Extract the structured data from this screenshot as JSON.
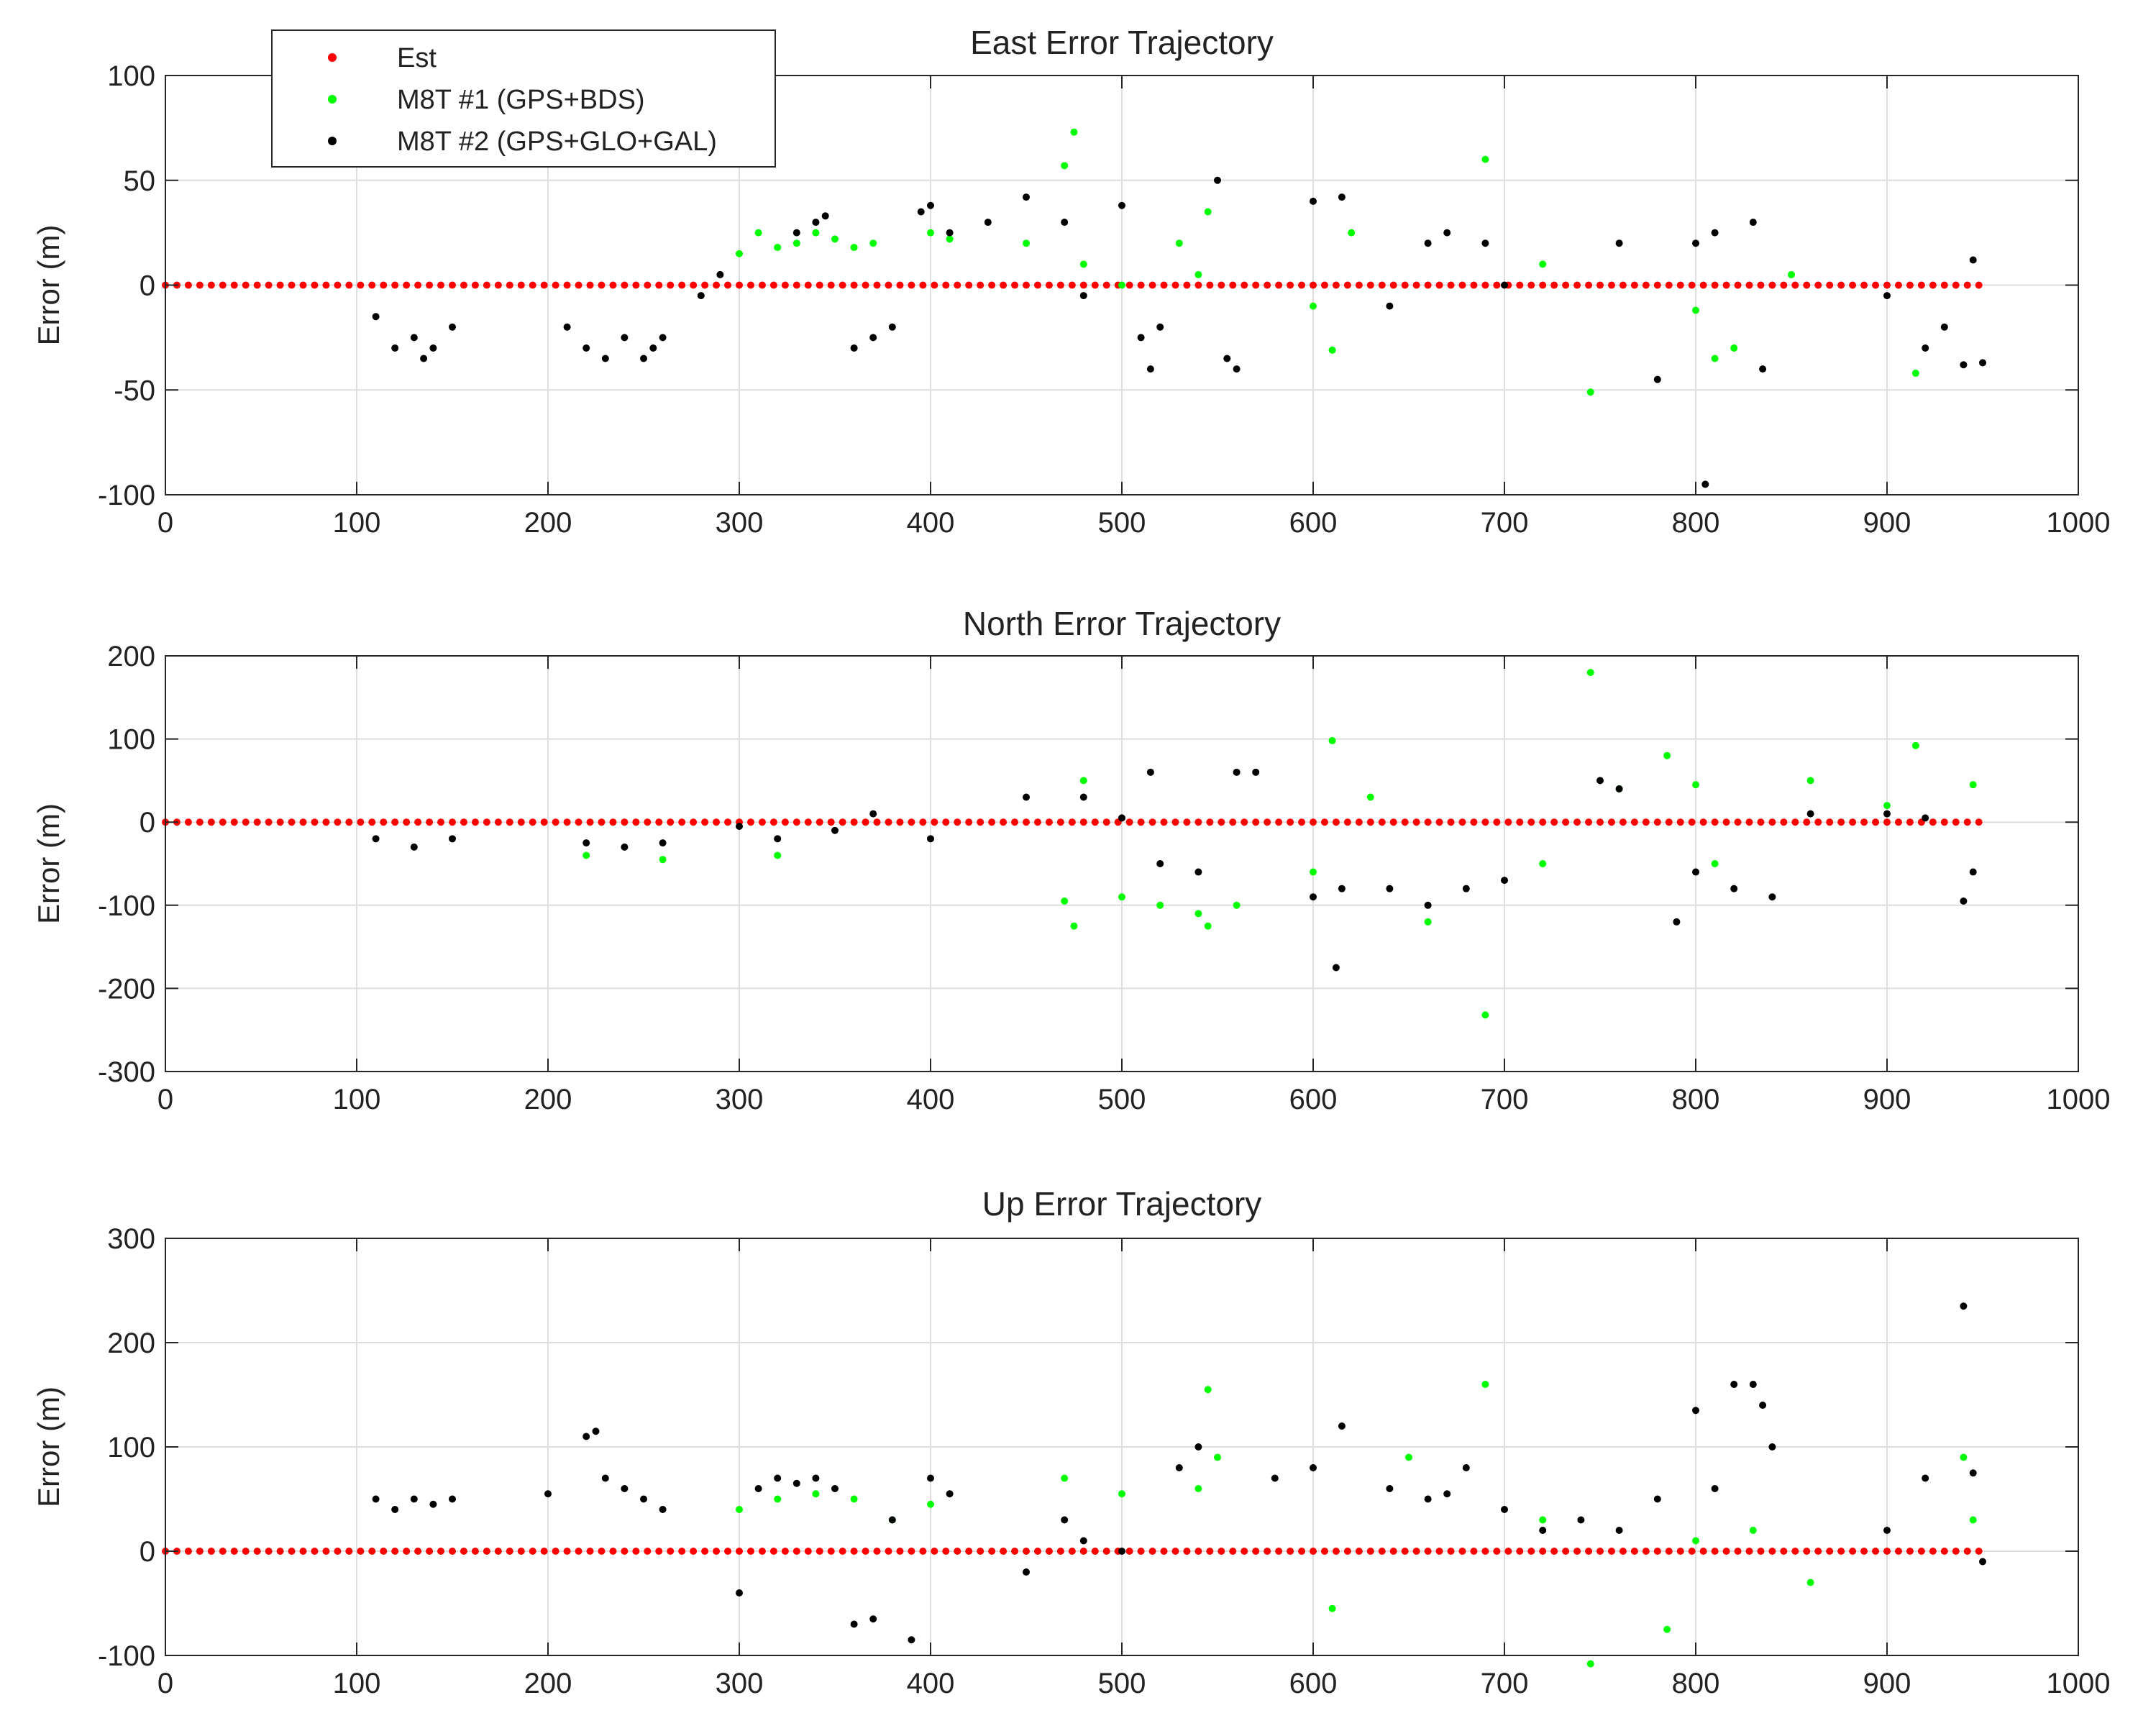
{
  "chart_data": [
    {
      "type": "scatter",
      "title": "East Error Trajectory",
      "xlabel": "",
      "ylabel": "Error (m)",
      "xlim": [
        0,
        1000
      ],
      "ylim": [
        -100,
        100
      ],
      "xticks": [
        0,
        100,
        200,
        300,
        400,
        500,
        600,
        700,
        800,
        900,
        1000
      ],
      "yticks": [
        -100,
        -50,
        0,
        50,
        100
      ],
      "grid": true,
      "legend": "top-left",
      "series": [
        {
          "name": "Est",
          "color": "#ff0000",
          "x": [
            0,
            950
          ],
          "y": [
            0,
            0
          ],
          "style": "dense-line"
        },
        {
          "name": "M8T #1 (GPS+BDS)",
          "color": "#00ff00",
          "x": [
            300,
            310,
            320,
            330,
            340,
            350,
            360,
            370,
            400,
            410,
            450,
            470,
            475,
            480,
            500,
            530,
            540,
            545,
            600,
            610,
            620,
            690,
            720,
            745,
            800,
            810,
            820,
            850,
            915
          ],
          "y": [
            15,
            25,
            18,
            20,
            25,
            22,
            18,
            20,
            25,
            22,
            20,
            57,
            73,
            10,
            0,
            20,
            5,
            35,
            -10,
            -31,
            25,
            60,
            10,
            -51,
            -12,
            -35,
            -30,
            5,
            -42
          ]
        },
        {
          "name": "M8T #2 (GPS+GLO+GAL)",
          "color": "#000000",
          "x": [
            110,
            120,
            130,
            135,
            140,
            150,
            210,
            220,
            230,
            240,
            250,
            255,
            260,
            280,
            290,
            330,
            340,
            345,
            360,
            370,
            380,
            395,
            400,
            410,
            430,
            450,
            470,
            480,
            500,
            510,
            515,
            520,
            550,
            555,
            560,
            600,
            615,
            640,
            660,
            670,
            690,
            700,
            760,
            780,
            800,
            805,
            810,
            830,
            835,
            900,
            920,
            930,
            940,
            945,
            950
          ],
          "y": [
            -15,
            -30,
            -25,
            -35,
            -30,
            -20,
            -20,
            -30,
            -35,
            -25,
            -35,
            -30,
            -25,
            -5,
            5,
            25,
            30,
            33,
            -30,
            -25,
            -20,
            35,
            38,
            25,
            30,
            42,
            30,
            -5,
            38,
            -25,
            -40,
            -20,
            50,
            -35,
            -40,
            40,
            42,
            -10,
            20,
            25,
            20,
            0,
            20,
            -45,
            20,
            -95,
            25,
            30,
            -40,
            -5,
            -30,
            -20,
            -38,
            12,
            -37
          ]
        }
      ]
    },
    {
      "type": "scatter",
      "title": "North Error Trajectory",
      "xlabel": "",
      "ylabel": "Error (m)",
      "xlim": [
        0,
        1000
      ],
      "ylim": [
        -300,
        200
      ],
      "xticks": [
        0,
        100,
        200,
        300,
        400,
        500,
        600,
        700,
        800,
        900,
        1000
      ],
      "yticks": [
        -300,
        -200,
        -100,
        0,
        100,
        200
      ],
      "grid": true,
      "series": [
        {
          "name": "Est",
          "color": "#ff0000",
          "x": [
            0,
            950
          ],
          "y": [
            0,
            0
          ],
          "style": "dense-line"
        },
        {
          "name": "M8T #1 (GPS+BDS)",
          "color": "#00ff00",
          "x": [
            220,
            260,
            320,
            470,
            475,
            480,
            500,
            520,
            540,
            545,
            560,
            600,
            610,
            630,
            660,
            690,
            720,
            745,
            760,
            785,
            800,
            810,
            860,
            900,
            915,
            945
          ],
          "y": [
            -40,
            -45,
            -40,
            -95,
            -125,
            50,
            -90,
            -100,
            -110,
            -125,
            -100,
            -60,
            98,
            30,
            -120,
            -232,
            -50,
            180,
            40,
            80,
            45,
            -50,
            50,
            20,
            92,
            45
          ]
        },
        {
          "name": "M8T #2 (GPS+GLO+GAL)",
          "color": "#000000",
          "x": [
            110,
            130,
            150,
            220,
            240,
            260,
            300,
            320,
            350,
            370,
            400,
            450,
            480,
            500,
            515,
            520,
            540,
            560,
            570,
            600,
            612,
            615,
            640,
            660,
            680,
            700,
            750,
            760,
            790,
            800,
            820,
            840,
            860,
            900,
            920,
            940,
            945
          ],
          "y": [
            -20,
            -30,
            -20,
            -25,
            -30,
            -25,
            -5,
            -20,
            -10,
            10,
            -20,
            30,
            30,
            5,
            60,
            -50,
            -60,
            60,
            60,
            -90,
            -175,
            -80,
            -80,
            -100,
            -80,
            -70,
            50,
            40,
            -120,
            -60,
            -80,
            -90,
            10,
            10,
            5,
            -95,
            -60
          ]
        }
      ]
    },
    {
      "type": "scatter",
      "title": "Up Error Trajectory",
      "xlabel": "",
      "ylabel": "Error (m)",
      "xlim": [
        0,
        1000
      ],
      "ylim": [
        -100,
        300
      ],
      "xticks": [
        0,
        100,
        200,
        300,
        400,
        500,
        600,
        700,
        800,
        900,
        1000
      ],
      "yticks": [
        -100,
        0,
        100,
        200,
        300
      ],
      "grid": true,
      "series": [
        {
          "name": "Est",
          "color": "#ff0000",
          "x": [
            0,
            950
          ],
          "y": [
            0,
            0
          ],
          "style": "dense-line"
        },
        {
          "name": "M8T #1 (GPS+BDS)",
          "color": "#00ff00",
          "x": [
            300,
            320,
            340,
            360,
            380,
            400,
            470,
            500,
            540,
            545,
            550,
            610,
            650,
            690,
            720,
            745,
            785,
            800,
            830,
            860,
            940,
            945
          ],
          "y": [
            40,
            50,
            55,
            50,
            30,
            45,
            70,
            55,
            60,
            155,
            90,
            -55,
            90,
            160,
            30,
            -108,
            -75,
            10,
            20,
            -30,
            90,
            30
          ]
        },
        {
          "name": "M8T #2 (GPS+GLO+GAL)",
          "color": "#000000",
          "x": [
            110,
            120,
            130,
            140,
            150,
            200,
            220,
            225,
            230,
            240,
            250,
            260,
            300,
            310,
            320,
            330,
            340,
            350,
            360,
            370,
            380,
            390,
            400,
            410,
            450,
            470,
            480,
            500,
            530,
            540,
            580,
            600,
            615,
            640,
            660,
            670,
            680,
            700,
            720,
            740,
            760,
            780,
            800,
            810,
            820,
            830,
            835,
            840,
            900,
            920,
            940,
            945,
            950
          ],
          "y": [
            50,
            40,
            50,
            45,
            50,
            55,
            110,
            115,
            70,
            60,
            50,
            40,
            -40,
            60,
            70,
            65,
            70,
            60,
            -70,
            -65,
            30,
            -85,
            70,
            55,
            -20,
            30,
            10,
            0,
            80,
            100,
            70,
            80,
            120,
            60,
            50,
            55,
            80,
            40,
            20,
            30,
            20,
            50,
            135,
            60,
            160,
            160,
            140,
            100,
            20,
            70,
            235,
            75,
            -10
          ]
        }
      ]
    }
  ]
}
